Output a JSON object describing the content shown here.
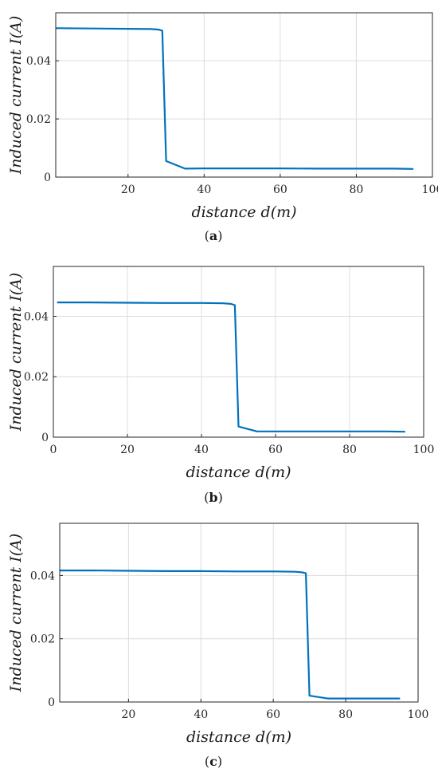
{
  "colors": {
    "line": "#0072BD",
    "axis": "#262626",
    "grid": "#dcdcdc"
  },
  "chart_data": [
    {
      "type": "line",
      "caption_letter": "a",
      "xlabel": "distance d(m)",
      "ylabel": "Induced current I(A)",
      "xlim": [
        1,
        100
      ],
      "ylim": [
        0,
        0.0565
      ],
      "xticks": [
        20,
        40,
        60,
        80,
        100
      ],
      "yticks": [
        0,
        0.02,
        0.04
      ],
      "grid": true,
      "series": [
        {
          "x": [
            1,
            10,
            20,
            26,
            28,
            29,
            30,
            35,
            40,
            50,
            60,
            70,
            80,
            90,
            95
          ],
          "y": [
            0.0512,
            0.0511,
            0.051,
            0.0509,
            0.0507,
            0.0503,
            0.0055,
            0.0029,
            0.003,
            0.003,
            0.003,
            0.0029,
            0.0029,
            0.0029,
            0.0028
          ]
        }
      ]
    },
    {
      "type": "line",
      "caption_letter": "b",
      "xlabel": "distance d(m)",
      "ylabel": "Induced current I(A)",
      "xlim": [
        0,
        100
      ],
      "ylim": [
        0,
        0.0565
      ],
      "xticks": [
        0,
        20,
        40,
        60,
        80,
        100
      ],
      "yticks": [
        0,
        0.02,
        0.04
      ],
      "grid": true,
      "series": [
        {
          "x": [
            1,
            10,
            20,
            30,
            40,
            46,
            48,
            49,
            50,
            55,
            60,
            70,
            80,
            90,
            95
          ],
          "y": [
            0.0446,
            0.0446,
            0.0445,
            0.0444,
            0.0444,
            0.0443,
            0.0441,
            0.0437,
            0.0035,
            0.0019,
            0.0019,
            0.0019,
            0.0019,
            0.0019,
            0.0018
          ]
        }
      ]
    },
    {
      "type": "line",
      "caption_letter": "c",
      "xlabel": "distance d(m)",
      "ylabel": "Induced current I(A)",
      "xlim": [
        1,
        100
      ],
      "ylim": [
        0,
        0.0565
      ],
      "xticks": [
        20,
        40,
        60,
        80,
        100
      ],
      "yticks": [
        0,
        0.02,
        0.04
      ],
      "grid": true,
      "series": [
        {
          "x": [
            1,
            10,
            20,
            30,
            40,
            50,
            60,
            66,
            68,
            69,
            70,
            75,
            80,
            90,
            95
          ],
          "y": [
            0.0416,
            0.0416,
            0.0415,
            0.0414,
            0.0414,
            0.0413,
            0.0413,
            0.0412,
            0.041,
            0.0407,
            0.002,
            0.0011,
            0.0011,
            0.0011,
            0.0011
          ]
        }
      ]
    }
  ]
}
